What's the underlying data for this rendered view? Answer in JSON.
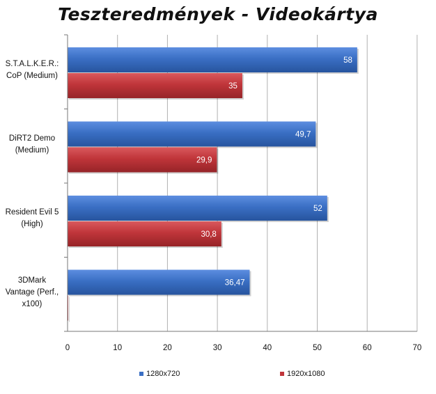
{
  "chart_data": {
    "type": "bar",
    "orientation": "horizontal",
    "title": "Teszteredmények - Videokártya",
    "categories": [
      "S.T.A.L.K.E.R.:\nCoP (Medium)",
      "DiRT2 Demo\n(Medium)",
      "Resident Evil 5\n(High)",
      "3DMark\nVantage (Perf.,\nx100)"
    ],
    "series": [
      {
        "name": "1280x720",
        "values": [
          58,
          49.7,
          52,
          36.47
        ],
        "labels": [
          "58",
          "49,7",
          "52",
          "36,47"
        ],
        "color": "#3a6fc4"
      },
      {
        "name": "1920x1080",
        "values": [
          35,
          29.9,
          30.8,
          0
        ],
        "labels": [
          "35",
          "29,9",
          "30,8",
          ""
        ],
        "color": "#c0353a"
      }
    ],
    "xlim": [
      0,
      70
    ],
    "xticks": [
      "0",
      "10",
      "20",
      "30",
      "40",
      "50",
      "60",
      "70"
    ],
    "grid": true,
    "legend_position": "bottom"
  }
}
